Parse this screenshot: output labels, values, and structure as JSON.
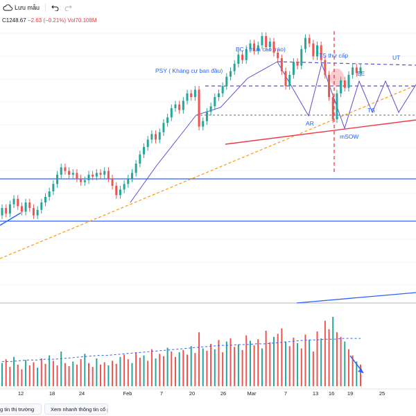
{
  "toolbar": {
    "save_label": "Lưu mẫu",
    "icons": [
      "cloud-icon",
      "undo-icon",
      "redo-icon"
    ]
  },
  "legend": {
    "close": "C1248.67",
    "change": "−2.63 (−0.21%)",
    "volume": "Vol70.108M"
  },
  "bottom": {
    "news_button": "g tin thị trường",
    "quick_info_button": "Xem nhanh thông tin cổ phiếu"
  },
  "annotations": {
    "bc": "BC ( mua cao trào)",
    "psy": "PSY ( Kháng cự ban đầu)",
    "ts_secondary": "TS thứ cấp",
    "ut": "UT",
    "be": "BE",
    "ts": "TS",
    "ar": "AR",
    "msow": "mSOW"
  },
  "colors": {
    "up": "#26a69a",
    "down": "#ef5350",
    "blue_line": "#2962ff",
    "purple_line": "#5b4fd6",
    "red_line": "#f23645",
    "orange_dash": "#ff9800"
  },
  "chart_data": {
    "type": "candlestick",
    "x_tick_labels": [
      "12",
      "18",
      "24",
      "Feb",
      "7",
      "20",
      "26",
      "Mar",
      "7",
      "13",
      "16",
      "19",
      "25"
    ],
    "y_min": 1115,
    "y_max": 1265,
    "candles": [
      {
        "o": 1162,
        "c": 1166
      },
      {
        "o": 1166,
        "c": 1163
      },
      {
        "o": 1163,
        "c": 1168
      },
      {
        "o": 1168,
        "c": 1171
      },
      {
        "o": 1171,
        "c": 1167
      },
      {
        "o": 1167,
        "c": 1164
      },
      {
        "o": 1164,
        "c": 1169
      },
      {
        "o": 1169,
        "c": 1166
      },
      {
        "o": 1166,
        "c": 1162
      },
      {
        "o": 1162,
        "c": 1165
      },
      {
        "o": 1165,
        "c": 1169
      },
      {
        "o": 1169,
        "c": 1172
      },
      {
        "o": 1172,
        "c": 1175
      },
      {
        "o": 1175,
        "c": 1179
      },
      {
        "o": 1179,
        "c": 1184
      },
      {
        "o": 1184,
        "c": 1188
      },
      {
        "o": 1188,
        "c": 1186
      },
      {
        "o": 1186,
        "c": 1184
      },
      {
        "o": 1184,
        "c": 1185
      },
      {
        "o": 1185,
        "c": 1182
      },
      {
        "o": 1182,
        "c": 1180
      },
      {
        "o": 1180,
        "c": 1181
      },
      {
        "o": 1181,
        "c": 1184
      },
      {
        "o": 1184,
        "c": 1183
      },
      {
        "o": 1183,
        "c": 1185
      },
      {
        "o": 1185,
        "c": 1184
      },
      {
        "o": 1184,
        "c": 1186
      },
      {
        "o": 1186,
        "c": 1182
      },
      {
        "o": 1182,
        "c": 1178
      },
      {
        "o": 1178,
        "c": 1173
      },
      {
        "o": 1173,
        "c": 1176
      },
      {
        "o": 1176,
        "c": 1179
      },
      {
        "o": 1179,
        "c": 1182
      },
      {
        "o": 1182,
        "c": 1185
      },
      {
        "o": 1185,
        "c": 1190
      },
      {
        "o": 1190,
        "c": 1195
      },
      {
        "o": 1195,
        "c": 1199
      },
      {
        "o": 1199,
        "c": 1203
      },
      {
        "o": 1203,
        "c": 1206
      },
      {
        "o": 1206,
        "c": 1203
      },
      {
        "o": 1203,
        "c": 1207
      },
      {
        "o": 1207,
        "c": 1212
      },
      {
        "o": 1212,
        "c": 1215
      },
      {
        "o": 1215,
        "c": 1220
      },
      {
        "o": 1220,
        "c": 1222
      },
      {
        "o": 1222,
        "c": 1219
      },
      {
        "o": 1219,
        "c": 1224
      },
      {
        "o": 1224,
        "c": 1228
      },
      {
        "o": 1228,
        "c": 1226
      },
      {
        "o": 1226,
        "c": 1230
      },
      {
        "o": 1230,
        "c": 1210
      },
      {
        "o": 1210,
        "c": 1213
      },
      {
        "o": 1213,
        "c": 1218
      },
      {
        "o": 1218,
        "c": 1221
      },
      {
        "o": 1221,
        "c": 1226
      },
      {
        "o": 1226,
        "c": 1228
      },
      {
        "o": 1228,
        "c": 1232
      },
      {
        "o": 1232,
        "c": 1237
      },
      {
        "o": 1237,
        "c": 1240
      },
      {
        "o": 1240,
        "c": 1244
      },
      {
        "o": 1244,
        "c": 1249
      },
      {
        "o": 1249,
        "c": 1246
      },
      {
        "o": 1246,
        "c": 1252
      },
      {
        "o": 1252,
        "c": 1255
      },
      {
        "o": 1255,
        "c": 1251
      },
      {
        "o": 1251,
        "c": 1254
      },
      {
        "o": 1254,
        "c": 1259
      },
      {
        "o": 1259,
        "c": 1253
      },
      {
        "o": 1253,
        "c": 1256
      },
      {
        "o": 1256,
        "c": 1250
      },
      {
        "o": 1250,
        "c": 1247
      },
      {
        "o": 1247,
        "c": 1240
      },
      {
        "o": 1240,
        "c": 1232
      },
      {
        "o": 1232,
        "c": 1238
      },
      {
        "o": 1238,
        "c": 1245
      },
      {
        "o": 1245,
        "c": 1243
      },
      {
        "o": 1243,
        "c": 1252
      },
      {
        "o": 1252,
        "c": 1258
      },
      {
        "o": 1258,
        "c": 1255
      },
      {
        "o": 1255,
        "c": 1248
      },
      {
        "o": 1248,
        "c": 1254
      },
      {
        "o": 1254,
        "c": 1246
      },
      {
        "o": 1246,
        "c": 1238
      },
      {
        "o": 1238,
        "c": 1226
      },
      {
        "o": 1226,
        "c": 1214
      },
      {
        "o": 1214,
        "c": 1228
      },
      {
        "o": 1228,
        "c": 1235
      },
      {
        "o": 1235,
        "c": 1231
      },
      {
        "o": 1231,
        "c": 1238
      },
      {
        "o": 1238,
        "c": 1242
      },
      {
        "o": 1242,
        "c": 1239
      },
      {
        "o": 1239,
        "c": 1242
      }
    ],
    "volume": [
      30,
      35,
      25,
      38,
      28,
      22,
      34,
      27,
      31,
      24,
      36,
      29,
      40,
      33,
      27,
      45,
      30,
      26,
      32,
      28,
      35,
      42,
      30,
      25,
      36,
      28,
      31,
      27,
      33,
      29,
      38,
      41,
      35,
      30,
      44,
      37,
      40,
      33,
      48,
      36,
      42,
      39,
      50,
      45,
      38,
      44,
      47,
      41,
      52,
      43,
      70,
      49,
      46,
      55,
      48,
      60,
      44,
      58,
      62,
      51,
      54,
      47,
      66,
      59,
      53,
      61,
      49,
      72,
      57,
      64,
      68,
      75,
      58,
      52,
      63,
      56,
      49,
      67,
      60,
      45,
      71,
      62,
      85,
      74,
      90,
      70,
      64,
      58,
      48,
      40,
      32,
      28
    ],
    "volume_ma": [
      32,
      32,
      33,
      34,
      34,
      35,
      35,
      36,
      37,
      38,
      39,
      40,
      40,
      41,
      42,
      43,
      44,
      45,
      46,
      47,
      48,
      49,
      50,
      51,
      52,
      53,
      53,
      54,
      54,
      55,
      55,
      56,
      57,
      58,
      59,
      60,
      60,
      61,
      61,
      62,
      62,
      62
    ]
  }
}
